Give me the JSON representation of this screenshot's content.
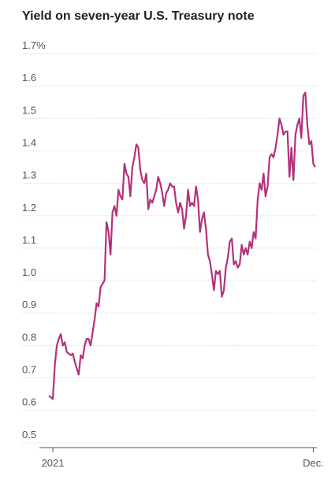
{
  "chart_data": {
    "type": "line",
    "title": "Yield on seven-year U.S. Treasury note",
    "color": "#b5307a",
    "categories": [
      null,
      null,
      "2021",
      null,
      null,
      null,
      null,
      null,
      null,
      null,
      null,
      null,
      null,
      null,
      null,
      null,
      null,
      null,
      null,
      null,
      null,
      null,
      null,
      null,
      null,
      null,
      null,
      null,
      null,
      null,
      null,
      null,
      null,
      null,
      null,
      null,
      null,
      null,
      null,
      null,
      null,
      null,
      null,
      null,
      null,
      null,
      null,
      null,
      null,
      null,
      null,
      null,
      null,
      null,
      null,
      null,
      null,
      null,
      null,
      null,
      null,
      null,
      null,
      null,
      null,
      null,
      null,
      null,
      null,
      null,
      null,
      null,
      null,
      null,
      null,
      null,
      null,
      null,
      null,
      null,
      null,
      null,
      null,
      null,
      null,
      null,
      null,
      null,
      null,
      null,
      null,
      null,
      null,
      null,
      null,
      null,
      null,
      null,
      null,
      null,
      null,
      null,
      null,
      null,
      null,
      null,
      null,
      null,
      null,
      null,
      null,
      null,
      null,
      null,
      null,
      null,
      null,
      null,
      null,
      null,
      null,
      null,
      null,
      null,
      null,
      null,
      null,
      null,
      null,
      null,
      null,
      null,
      null,
      "Dec.",
      null
    ],
    "values": [
      0.645,
      0.64,
      0.635,
      0.74,
      0.8,
      0.82,
      0.835,
      0.8,
      0.81,
      0.78,
      0.775,
      0.77,
      0.775,
      0.75,
      0.73,
      0.71,
      0.77,
      0.76,
      0.8,
      0.82,
      0.82,
      0.8,
      0.84,
      0.88,
      0.93,
      0.92,
      0.98,
      0.99,
      1.0,
      1.18,
      1.15,
      1.08,
      1.21,
      1.23,
      1.2,
      1.28,
      1.26,
      1.25,
      1.36,
      1.33,
      1.32,
      1.26,
      1.35,
      1.38,
      1.42,
      1.41,
      1.34,
      1.31,
      1.3,
      1.33,
      1.22,
      1.25,
      1.24,
      1.26,
      1.28,
      1.32,
      1.3,
      1.27,
      1.23,
      1.27,
      1.28,
      1.3,
      1.29,
      1.29,
      1.24,
      1.21,
      1.24,
      1.22,
      1.16,
      1.2,
      1.28,
      1.23,
      1.24,
      1.23,
      1.29,
      1.25,
      1.15,
      1.19,
      1.21,
      1.16,
      1.08,
      1.06,
      1.02,
      0.97,
      1.03,
      1.02,
      1.03,
      0.95,
      0.97,
      1.04,
      1.07,
      1.12,
      1.13,
      1.05,
      1.06,
      1.04,
      1.05,
      1.11,
      1.08,
      1.1,
      1.08,
      1.12,
      1.1,
      1.15,
      1.13,
      1.25,
      1.3,
      1.28,
      1.33,
      1.26,
      1.29,
      1.38,
      1.39,
      1.38,
      1.41,
      1.45,
      1.5,
      1.48,
      1.45,
      1.46,
      1.46,
      1.32,
      1.41,
      1.31,
      1.45,
      1.48,
      1.5,
      1.44,
      1.57,
      1.58,
      1.48,
      1.42,
      1.43,
      1.36,
      1.35
    ],
    "ylim": [
      0.485,
      1.7
    ],
    "yticks": [
      0.5,
      0.6,
      0.7,
      0.8,
      0.9,
      {
        "value": 1.0,
        "label": "1.0"
      },
      1.1,
      1.2,
      1.3,
      1.4,
      1.5,
      1.6,
      {
        "value": 1.7,
        "label": "1.7%"
      }
    ],
    "grid": true
  }
}
